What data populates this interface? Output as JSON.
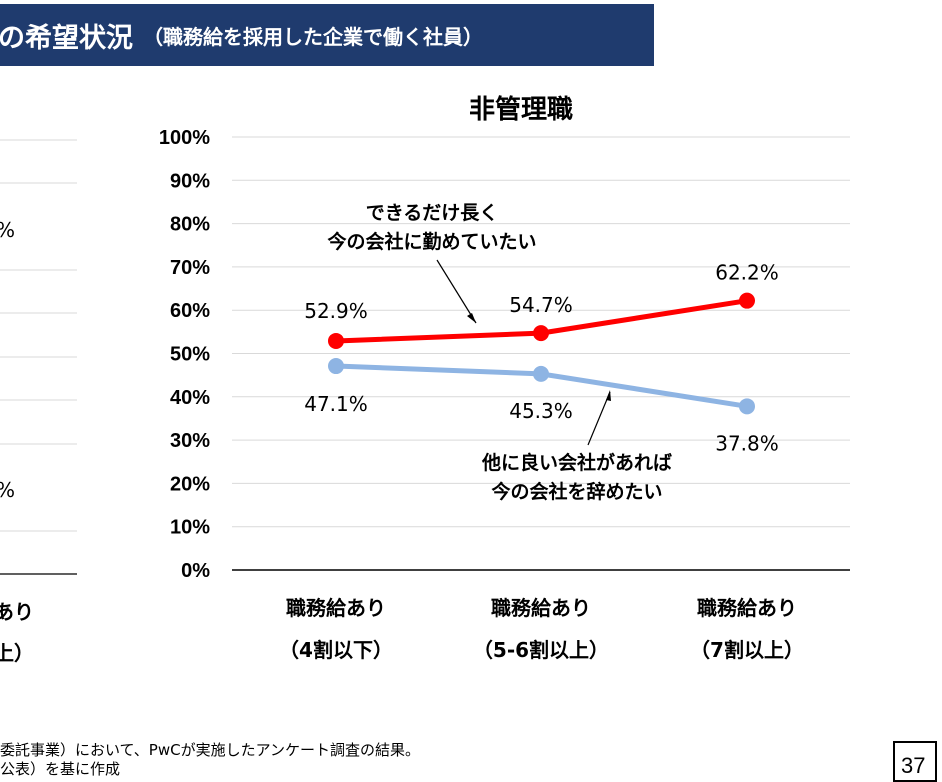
{
  "header": {
    "title_main": "の希望状況",
    "title_sub": "（職務給を採用した企業で働く社員）"
  },
  "left_chart_partial": {
    "pct_a": "%",
    "pct_b": "%",
    "xlabel_line1": "あり",
    "xlabel_line2": "上）"
  },
  "footer": {
    "line1": "委託事業）において、PwCが実施したアンケート調査の結果。",
    "line2": "公表）を基に作成"
  },
  "page_number": "37",
  "chart_data": {
    "type": "line",
    "title": "非管理職",
    "categories": [
      [
        "職務給あり",
        "（4割以下）"
      ],
      [
        "職務給あり",
        "（5-6割以上）"
      ],
      [
        "職務給あり",
        "（7割以上）"
      ]
    ],
    "ylim": [
      0,
      100
    ],
    "yticks": [
      "0%",
      "10%",
      "20%",
      "30%",
      "40%",
      "50%",
      "60%",
      "70%",
      "80%",
      "90%",
      "100%"
    ],
    "grid": true,
    "series": [
      {
        "name": "できるだけ長く今の会社に勤めていたい",
        "name_lines": [
          "できるだけ長く",
          "今の会社に勤めていたい"
        ],
        "color": "#ff0000",
        "values": [
          52.9,
          54.7,
          62.2
        ],
        "labels": [
          "52.9%",
          "54.7%",
          "62.2%"
        ]
      },
      {
        "name": "他に良い会社があれば今の会社を辞めたい",
        "name_lines": [
          "他に良い会社があれば",
          "今の会社を辞めたい"
        ],
        "color": "#8eb4e3",
        "values": [
          47.1,
          45.3,
          37.8
        ],
        "labels": [
          "47.1%",
          "45.3%",
          "37.8%"
        ]
      }
    ]
  }
}
